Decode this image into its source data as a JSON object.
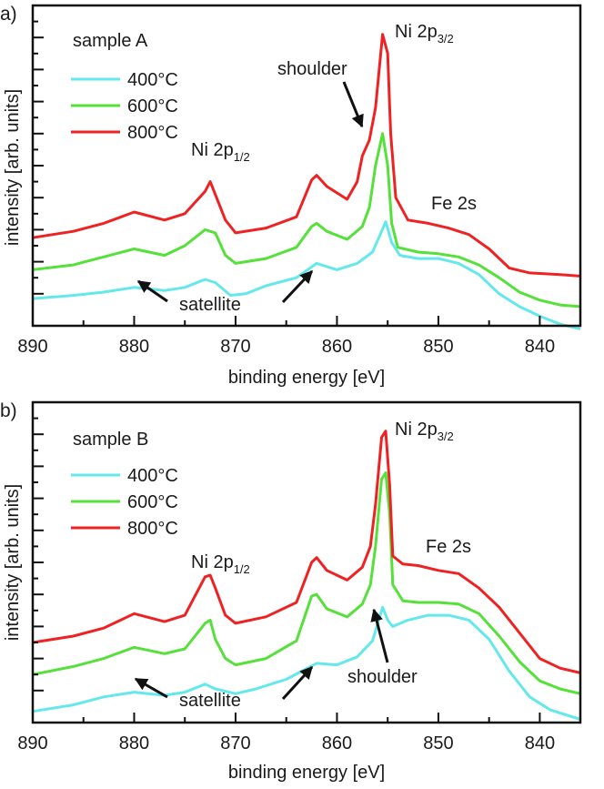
{
  "chart_data": [
    {
      "type": "line",
      "panel_label": "a)",
      "sample_label": "sample A",
      "xlabel": "binding energy [eV]",
      "ylabel": "intensity [arb. units]",
      "xlim": [
        890,
        836
      ],
      "x_reversed": true,
      "ylim": [
        0,
        10
      ],
      "x_ticks": [
        890,
        880,
        870,
        860,
        850,
        840
      ],
      "y_tick_labels": false,
      "series": [
        {
          "name": "400°C",
          "color": "#64e8ec",
          "points": [
            [
              890,
              0.85
            ],
            [
              886,
              0.95
            ],
            [
              883,
              1.05
            ],
            [
              880,
              1.2
            ],
            [
              877,
              1.1
            ],
            [
              875,
              1.2
            ],
            [
              873,
              1.45
            ],
            [
              872,
              1.35
            ],
            [
              870.5,
              0.95
            ],
            [
              869,
              1.0
            ],
            [
              867,
              1.25
            ],
            [
              864,
              1.5
            ],
            [
              862,
              1.95
            ],
            [
              860,
              1.75
            ],
            [
              858,
              1.95
            ],
            [
              856.5,
              2.3
            ],
            [
              855.8,
              2.8
            ],
            [
              855.2,
              3.25
            ],
            [
              854.6,
              2.6
            ],
            [
              853.8,
              2.2
            ],
            [
              852,
              2.1
            ],
            [
              850,
              2.1
            ],
            [
              848,
              1.95
            ],
            [
              846,
              1.6
            ],
            [
              844,
              1.0
            ],
            [
              842,
              0.6
            ],
            [
              840,
              0.3
            ],
            [
              838,
              0.05
            ],
            [
              836,
              -0.1
            ]
          ]
        },
        {
          "name": "600°C",
          "color": "#55e03a",
          "points": [
            [
              890,
              1.75
            ],
            [
              886,
              1.9
            ],
            [
              883,
              2.15
            ],
            [
              880,
              2.4
            ],
            [
              877,
              2.2
            ],
            [
              875,
              2.5
            ],
            [
              873,
              3.0
            ],
            [
              872,
              2.9
            ],
            [
              871,
              2.2
            ],
            [
              870,
              1.95
            ],
            [
              867,
              2.1
            ],
            [
              864,
              2.45
            ],
            [
              862.5,
              3.1
            ],
            [
              862,
              3.2
            ],
            [
              861,
              2.95
            ],
            [
              859,
              2.7
            ],
            [
              857.5,
              3.1
            ],
            [
              856.8,
              3.7
            ],
            [
              856.2,
              5.0
            ],
            [
              855.5,
              6.0
            ],
            [
              855,
              5.0
            ],
            [
              854.6,
              3.2
            ],
            [
              854,
              2.45
            ],
            [
              852,
              2.3
            ],
            [
              850,
              2.25
            ],
            [
              848,
              2.15
            ],
            [
              846,
              1.9
            ],
            [
              844,
              1.5
            ],
            [
              842,
              1.05
            ],
            [
              840,
              0.8
            ],
            [
              838,
              0.65
            ],
            [
              836,
              0.6
            ]
          ]
        },
        {
          "name": "800°C",
          "color": "#ee2222",
          "points": [
            [
              890,
              2.75
            ],
            [
              886,
              2.95
            ],
            [
              883,
              3.2
            ],
            [
              880,
              3.55
            ],
            [
              877,
              3.3
            ],
            [
              875,
              3.5
            ],
            [
              873,
              4.2
            ],
            [
              872.5,
              4.5
            ],
            [
              872,
              4.1
            ],
            [
              871,
              3.3
            ],
            [
              870,
              2.9
            ],
            [
              867,
              3.05
            ],
            [
              864,
              3.4
            ],
            [
              862.5,
              4.55
            ],
            [
              862,
              4.7
            ],
            [
              861,
              4.35
            ],
            [
              859,
              3.95
            ],
            [
              858,
              4.5
            ],
            [
              857.5,
              5.3
            ],
            [
              856.8,
              5.8
            ],
            [
              856.2,
              6.8
            ],
            [
              855.5,
              9.1
            ],
            [
              855,
              8.5
            ],
            [
              854.7,
              6.0
            ],
            [
              854.2,
              4.0
            ],
            [
              853,
              3.3
            ],
            [
              851,
              3.2
            ],
            [
              849,
              3.05
            ],
            [
              847,
              2.85
            ],
            [
              845,
              2.4
            ],
            [
              843,
              1.8
            ],
            [
              841,
              1.65
            ],
            [
              838,
              1.6
            ],
            [
              836,
              1.55
            ]
          ]
        }
      ],
      "annotations": [
        "shoulder",
        "Ni 2p3/2",
        "Ni 2p1/2",
        "Fe 2s",
        "satellite"
      ]
    },
    {
      "type": "line",
      "panel_label": "b)",
      "sample_label": "sample B",
      "xlabel": "binding energy [eV]",
      "ylabel": "intensity [arb. units]",
      "xlim": [
        890,
        836
      ],
      "x_reversed": true,
      "ylim": [
        0,
        10
      ],
      "x_ticks": [
        890,
        880,
        870,
        860,
        850,
        840
      ],
      "y_tick_labels": false,
      "series": [
        {
          "name": "400°C",
          "color": "#64e8ec",
          "points": [
            [
              890,
              0.35
            ],
            [
              886,
              0.55
            ],
            [
              883,
              0.8
            ],
            [
              880,
              0.95
            ],
            [
              877,
              0.85
            ],
            [
              875,
              0.95
            ],
            [
              873,
              1.2
            ],
            [
              872,
              1.05
            ],
            [
              870,
              0.9
            ],
            [
              868,
              1.05
            ],
            [
              865,
              1.35
            ],
            [
              862,
              1.85
            ],
            [
              860,
              1.8
            ],
            [
              858,
              2.05
            ],
            [
              856.5,
              2.55
            ],
            [
              855.5,
              3.6
            ],
            [
              855,
              3.2
            ],
            [
              854.5,
              3.0
            ],
            [
              853,
              3.2
            ],
            [
              851,
              3.35
            ],
            [
              849,
              3.35
            ],
            [
              847,
              3.2
            ],
            [
              845,
              2.6
            ],
            [
              843,
              1.6
            ],
            [
              841,
              0.8
            ],
            [
              839,
              0.4
            ],
            [
              836,
              0.1
            ]
          ]
        },
        {
          "name": "600°C",
          "color": "#55e03a",
          "points": [
            [
              890,
              1.5
            ],
            [
              886,
              1.75
            ],
            [
              883,
              2.0
            ],
            [
              880,
              2.35
            ],
            [
              877,
              2.15
            ],
            [
              875,
              2.3
            ],
            [
              873,
              3.1
            ],
            [
              872.5,
              3.2
            ],
            [
              872,
              2.6
            ],
            [
              871,
              2.0
            ],
            [
              870,
              1.8
            ],
            [
              867,
              2.0
            ],
            [
              864,
              2.55
            ],
            [
              862.5,
              3.95
            ],
            [
              862,
              4.0
            ],
            [
              861,
              3.55
            ],
            [
              859,
              3.3
            ],
            [
              857.5,
              3.7
            ],
            [
              856.7,
              4.3
            ],
            [
              856.2,
              5.5
            ],
            [
              855.6,
              7.6
            ],
            [
              855.2,
              7.8
            ],
            [
              854.8,
              6.5
            ],
            [
              854.5,
              4.3
            ],
            [
              853.5,
              3.8
            ],
            [
              852,
              3.75
            ],
            [
              850,
              3.75
            ],
            [
              848,
              3.7
            ],
            [
              846,
              3.4
            ],
            [
              844,
              2.7
            ],
            [
              842,
              1.9
            ],
            [
              840,
              1.3
            ],
            [
              838,
              1.05
            ],
            [
              836,
              0.9
            ]
          ]
        },
        {
          "name": "800°C",
          "color": "#ee2222",
          "points": [
            [
              890,
              2.5
            ],
            [
              886,
              2.7
            ],
            [
              883,
              2.95
            ],
            [
              880,
              3.4
            ],
            [
              877,
              3.15
            ],
            [
              875,
              3.35
            ],
            [
              873,
              4.55
            ],
            [
              872.5,
              4.6
            ],
            [
              872,
              4.2
            ],
            [
              871,
              3.35
            ],
            [
              870,
              3.1
            ],
            [
              867,
              3.3
            ],
            [
              864,
              3.75
            ],
            [
              862.5,
              5.0
            ],
            [
              862,
              5.15
            ],
            [
              861,
              4.75
            ],
            [
              859,
              4.45
            ],
            [
              857.5,
              4.85
            ],
            [
              856.7,
              5.5
            ],
            [
              856.2,
              6.8
            ],
            [
              855.6,
              8.9
            ],
            [
              855.2,
              9.1
            ],
            [
              854.8,
              7.4
            ],
            [
              854.5,
              5.2
            ],
            [
              853.5,
              4.95
            ],
            [
              852,
              4.9
            ],
            [
              850,
              4.75
            ],
            [
              848,
              4.65
            ],
            [
              846,
              4.2
            ],
            [
              844,
              3.6
            ],
            [
              842,
              2.8
            ],
            [
              840,
              2.0
            ],
            [
              838,
              1.7
            ],
            [
              836,
              1.55
            ]
          ]
        }
      ],
      "annotations": [
        "Ni 2p3/2",
        "Ni 2p1/2",
        "Fe 2s",
        "shoulder",
        "satellite"
      ]
    }
  ]
}
